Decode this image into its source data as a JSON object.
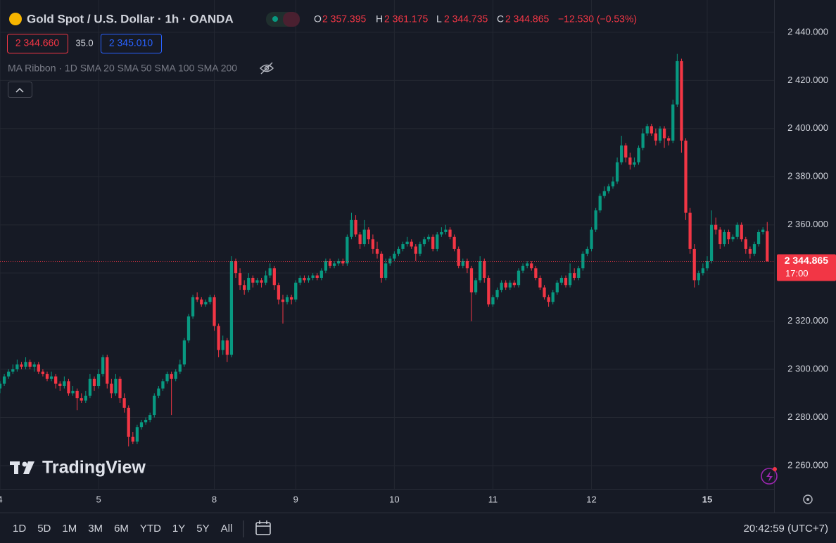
{
  "header": {
    "symbol": "Gold Spot / U.S. Dollar · 1h · OANDA",
    "open_key": "O",
    "open": "2 357.395",
    "high_key": "H",
    "high": "2 361.175",
    "low_key": "L",
    "low": "2 344.735",
    "close_key": "C",
    "close": "2 344.865",
    "change": "−12.530 (−0.53%)",
    "bid": "2 344.660",
    "spread": "35.0",
    "ask": "2 345.010",
    "indicator": "MA Ribbon · 1D SMA 20 SMA 50 SMA 100 SMA 200",
    "watermark": "TradingView"
  },
  "toolbar": {
    "ranges": [
      "1D",
      "5D",
      "1M",
      "3M",
      "6M",
      "YTD",
      "1Y",
      "5Y",
      "All"
    ],
    "clock": "20:42:59 (UTC+7)"
  },
  "chart_data": {
    "type": "candlestick",
    "up_color": "#089981",
    "down_color": "#f23645",
    "grid": true,
    "xlim": [
      0,
      180.6
    ],
    "xticks": [
      {
        "value": 0,
        "label": "4"
      },
      {
        "value": 23,
        "label": "5"
      },
      {
        "value": 50,
        "label": "8"
      },
      {
        "value": 69,
        "label": "9"
      },
      {
        "value": 92,
        "label": "10"
      },
      {
        "value": 115,
        "label": "11"
      },
      {
        "value": 138,
        "label": "12"
      },
      {
        "value": 165,
        "label": "15"
      }
    ],
    "ylim": [
      2241,
      2453.4
    ],
    "yticks": [
      {
        "value": 2440,
        "label": "2 440.000"
      },
      {
        "value": 2420,
        "label": "2 420.000"
      },
      {
        "value": 2400,
        "label": "2 400.000"
      },
      {
        "value": 2380,
        "label": "2 380.000"
      },
      {
        "value": 2360,
        "label": "2 360.000"
      },
      {
        "value": 2340,
        "label": "2 340.000"
      },
      {
        "value": 2320,
        "label": "2 320.000"
      },
      {
        "value": 2300,
        "label": "2 300.000"
      },
      {
        "value": 2280,
        "label": "2 280.000"
      },
      {
        "value": 2260,
        "label": "2 260.000"
      }
    ],
    "last_price": {
      "value": 2344.865,
      "label": "2 344.865"
    },
    "countdown": "17:00",
    "ohlc": [
      [
        2292,
        2295,
        2290,
        2294
      ],
      [
        2294,
        2298,
        2293,
        2297
      ],
      [
        2297,
        2300,
        2296,
        2299
      ],
      [
        2299,
        2302,
        2298,
        2300
      ],
      [
        2300,
        2304,
        2299,
        2302
      ],
      [
        2302,
        2303,
        2300,
        2301
      ],
      [
        2301,
        2305,
        2300,
        2303
      ],
      [
        2303,
        2304,
        2300,
        2301
      ],
      [
        2301,
        2303,
        2299,
        2302
      ],
      [
        2302,
        2303,
        2298,
        2299
      ],
      [
        2299,
        2300,
        2297,
        2298
      ],
      [
        2298,
        2299,
        2295,
        2296
      ],
      [
        2296,
        2299,
        2295,
        2297
      ],
      [
        2297,
        2298,
        2292,
        2294
      ],
      [
        2294,
        2295,
        2291,
        2293
      ],
      [
        2293,
        2297,
        2292,
        2295
      ],
      [
        2295,
        2296,
        2289,
        2290
      ],
      [
        2290,
        2293,
        2289,
        2291
      ],
      [
        2291,
        2292,
        2283,
        2288
      ],
      [
        2288,
        2290,
        2286,
        2287
      ],
      [
        2287,
        2291,
        2286,
        2289
      ],
      [
        2289,
        2298,
        2288,
        2296
      ],
      [
        2296,
        2297,
        2291,
        2293
      ],
      [
        2293,
        2300,
        2292,
        2298
      ],
      [
        2298,
        2306,
        2297,
        2305
      ],
      [
        2305,
        2306,
        2292,
        2294
      ],
      [
        2294,
        2296,
        2288,
        2290
      ],
      [
        2290,
        2298,
        2289,
        2296
      ],
      [
        2296,
        2297,
        2286,
        2288
      ],
      [
        2288,
        2290,
        2282,
        2284
      ],
      [
        2284,
        2285,
        2268,
        2272
      ],
      [
        2272,
        2274,
        2269,
        2270
      ],
      [
        2270,
        2277,
        2269,
        2276
      ],
      [
        2276,
        2279,
        2275,
        2278
      ],
      [
        2278,
        2280,
        2277,
        2279
      ],
      [
        2279,
        2282,
        2278,
        2281
      ],
      [
        2281,
        2290,
        2280,
        2289
      ],
      [
        2289,
        2293,
        2288,
        2292
      ],
      [
        2292,
        2296,
        2291,
        2295
      ],
      [
        2295,
        2299,
        2294,
        2298
      ],
      [
        2298,
        2299,
        2281,
        2296
      ],
      [
        2296,
        2300,
        2295,
        2299
      ],
      [
        2299,
        2304,
        2298,
        2302
      ],
      [
        2302,
        2313,
        2301,
        2312
      ],
      [
        2312,
        2323,
        2311,
        2322
      ],
      [
        2322,
        2331,
        2321,
        2330
      ],
      [
        2330,
        2332,
        2328,
        2329
      ],
      [
        2329,
        2330,
        2326,
        2327
      ],
      [
        2327,
        2329,
        2326,
        2328
      ],
      [
        2328,
        2331,
        2327,
        2330
      ],
      [
        2330,
        2331,
        2316,
        2318
      ],
      [
        2318,
        2319,
        2305,
        2308
      ],
      [
        2308,
        2314,
        2306,
        2312
      ],
      [
        2312,
        2313,
        2303,
        2306
      ],
      [
        2306,
        2347,
        2305,
        2345
      ],
      [
        2345,
        2346,
        2338,
        2340
      ],
      [
        2340,
        2342,
        2333,
        2335
      ],
      [
        2335,
        2337,
        2331,
        2333
      ],
      [
        2333,
        2340,
        2332,
        2338
      ],
      [
        2338,
        2339,
        2334,
        2336
      ],
      [
        2336,
        2338,
        2335,
        2337
      ],
      [
        2337,
        2338,
        2334,
        2336
      ],
      [
        2336,
        2341,
        2335,
        2339
      ],
      [
        2339,
        2344,
        2338,
        2342
      ],
      [
        2342,
        2343,
        2333,
        2335
      ],
      [
        2335,
        2336,
        2327,
        2329
      ],
      [
        2329,
        2331,
        2319,
        2328
      ],
      [
        2328,
        2331,
        2327,
        2330
      ],
      [
        2330,
        2331,
        2327,
        2329
      ],
      [
        2329,
        2337,
        2328,
        2336
      ],
      [
        2336,
        2339,
        2335,
        2338
      ],
      [
        2338,
        2339,
        2336,
        2337
      ],
      [
        2337,
        2339,
        2336,
        2338
      ],
      [
        2338,
        2340,
        2337,
        2339
      ],
      [
        2339,
        2340,
        2337,
        2338
      ],
      [
        2338,
        2342,
        2337,
        2341
      ],
      [
        2341,
        2346,
        2340,
        2345
      ],
      [
        2345,
        2346,
        2342,
        2343
      ],
      [
        2343,
        2345,
        2342,
        2344
      ],
      [
        2344,
        2346,
        2343,
        2345
      ],
      [
        2345,
        2346,
        2343,
        2344
      ],
      [
        2344,
        2356,
        2343,
        2355
      ],
      [
        2355,
        2365,
        2354,
        2362
      ],
      [
        2362,
        2364,
        2355,
        2356
      ],
      [
        2356,
        2357,
        2350,
        2352
      ],
      [
        2352,
        2362,
        2351,
        2358
      ],
      [
        2358,
        2359,
        2352,
        2354
      ],
      [
        2354,
        2356,
        2348,
        2350
      ],
      [
        2350,
        2353,
        2346,
        2348
      ],
      [
        2348,
        2349,
        2336,
        2338
      ],
      [
        2338,
        2346,
        2337,
        2344
      ],
      [
        2344,
        2347,
        2343,
        2346
      ],
      [
        2346,
        2349,
        2345,
        2348
      ],
      [
        2348,
        2351,
        2347,
        2350
      ],
      [
        2350,
        2353,
        2349,
        2352
      ],
      [
        2352,
        2355,
        2351,
        2353
      ],
      [
        2353,
        2354,
        2350,
        2351
      ],
      [
        2351,
        2352,
        2345,
        2348
      ],
      [
        2348,
        2353,
        2347,
        2352
      ],
      [
        2352,
        2355,
        2351,
        2354
      ],
      [
        2354,
        2356,
        2353,
        2355
      ],
      [
        2355,
        2356,
        2349,
        2350
      ],
      [
        2350,
        2357,
        2349,
        2356
      ],
      [
        2356,
        2359,
        2355,
        2357
      ],
      [
        2357,
        2360,
        2356,
        2358
      ],
      [
        2358,
        2359,
        2354,
        2355
      ],
      [
        2355,
        2356,
        2349,
        2350
      ],
      [
        2350,
        2351,
        2342,
        2343
      ],
      [
        2343,
        2346,
        2342,
        2345
      ],
      [
        2345,
        2346,
        2340,
        2342
      ],
      [
        2342,
        2343,
        2320,
        2332
      ],
      [
        2332,
        2338,
        2331,
        2337
      ],
      [
        2337,
        2347,
        2336,
        2345
      ],
      [
        2345,
        2346,
        2336,
        2338
      ],
      [
        2338,
        2339,
        2326,
        2327
      ],
      [
        2327,
        2331,
        2326,
        2330
      ],
      [
        2330,
        2334,
        2329,
        2333
      ],
      [
        2333,
        2337,
        2332,
        2336
      ],
      [
        2336,
        2337,
        2333,
        2334
      ],
      [
        2334,
        2337,
        2333,
        2336
      ],
      [
        2336,
        2337,
        2334,
        2335
      ],
      [
        2335,
        2342,
        2334,
        2341
      ],
      [
        2341,
        2344,
        2340,
        2343
      ],
      [
        2343,
        2345,
        2342,
        2344
      ],
      [
        2344,
        2345,
        2341,
        2342
      ],
      [
        2342,
        2343,
        2337,
        2338
      ],
      [
        2338,
        2339,
        2333,
        2334
      ],
      [
        2334,
        2335,
        2329,
        2330
      ],
      [
        2330,
        2331,
        2326,
        2328
      ],
      [
        2328,
        2333,
        2327,
        2332
      ],
      [
        2332,
        2337,
        2331,
        2336
      ],
      [
        2336,
        2339,
        2335,
        2338
      ],
      [
        2338,
        2339,
        2334,
        2335
      ],
      [
        2335,
        2344,
        2334,
        2340
      ],
      [
        2340,
        2342,
        2337,
        2338
      ],
      [
        2338,
        2343,
        2337,
        2342
      ],
      [
        2342,
        2349,
        2341,
        2348
      ],
      [
        2348,
        2351,
        2347,
        2350
      ],
      [
        2350,
        2359,
        2349,
        2358
      ],
      [
        2358,
        2367,
        2357,
        2366
      ],
      [
        2366,
        2373,
        2365,
        2372
      ],
      [
        2372,
        2376,
        2371,
        2374
      ],
      [
        2374,
        2377,
        2373,
        2376
      ],
      [
        2376,
        2380,
        2375,
        2378
      ],
      [
        2378,
        2388,
        2377,
        2386
      ],
      [
        2386,
        2397,
        2385,
        2393
      ],
      [
        2393,
        2394,
        2386,
        2388
      ],
      [
        2388,
        2390,
        2383,
        2385
      ],
      [
        2385,
        2388,
        2384,
        2386
      ],
      [
        2386,
        2393,
        2385,
        2392
      ],
      [
        2392,
        2400,
        2391,
        2398
      ],
      [
        2398,
        2402,
        2397,
        2401
      ],
      [
        2401,
        2402,
        2397,
        2398
      ],
      [
        2398,
        2400,
        2393,
        2395
      ],
      [
        2395,
        2401,
        2394,
        2400
      ],
      [
        2400,
        2401,
        2392,
        2396
      ],
      [
        2396,
        2397,
        2393,
        2395
      ],
      [
        2395,
        2412,
        2394,
        2410
      ],
      [
        2410,
        2431,
        2409,
        2428
      ],
      [
        2428,
        2429,
        2390,
        2395
      ],
      [
        2395,
        2396,
        2362,
        2365
      ],
      [
        2365,
        2367,
        2348,
        2350
      ],
      [
        2350,
        2352,
        2334,
        2337
      ],
      [
        2337,
        2341,
        2335,
        2340
      ],
      [
        2340,
        2344,
        2339,
        2342
      ],
      [
        2342,
        2347,
        2341,
        2345
      ],
      [
        2345,
        2366,
        2344,
        2360
      ],
      [
        2360,
        2363,
        2356,
        2358
      ],
      [
        2358,
        2359,
        2350,
        2352
      ],
      [
        2352,
        2358,
        2351,
        2357
      ],
      [
        2357,
        2358,
        2352,
        2354
      ],
      [
        2354,
        2356,
        2353,
        2355
      ],
      [
        2355,
        2361,
        2354,
        2360
      ],
      [
        2360,
        2361,
        2353,
        2354
      ],
      [
        2354,
        2355,
        2348,
        2350
      ],
      [
        2350,
        2351,
        2346,
        2348
      ],
      [
        2348,
        2353,
        2347,
        2352
      ],
      [
        2352,
        2358,
        2351,
        2357
      ],
      [
        2357,
        2359,
        2356,
        2358
      ],
      [
        2357.395,
        2361.175,
        2344.735,
        2344.865
      ]
    ]
  }
}
